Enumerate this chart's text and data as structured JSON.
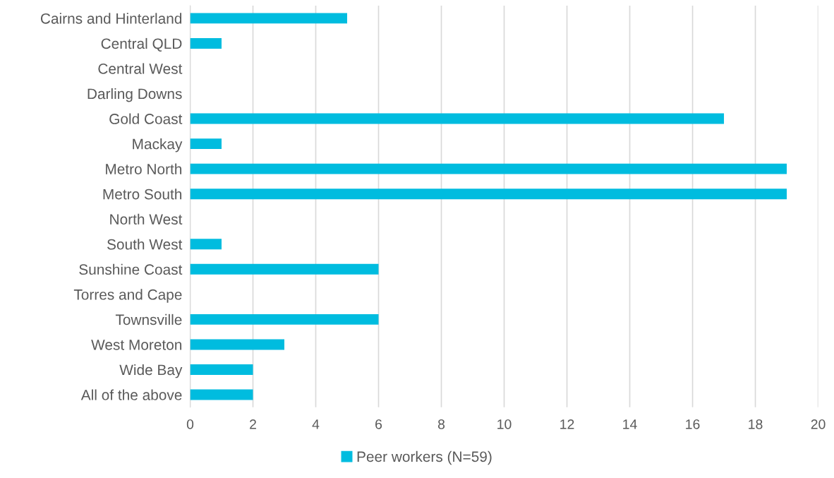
{
  "chart_data": {
    "type": "bar",
    "orientation": "horizontal",
    "categories": [
      "Cairns and Hinterland",
      "Central QLD",
      "Central West",
      "Darling Downs",
      "Gold Coast",
      "Mackay",
      "Metro North",
      "Metro South",
      "North West",
      "South West",
      "Sunshine Coast",
      "Torres and Cape",
      "Townsville",
      "West Moreton",
      "Wide Bay",
      "All of the above"
    ],
    "series": [
      {
        "name": "Peer workers (N=59)",
        "color": "#00bcdf",
        "values": [
          5,
          1,
          0,
          0,
          17,
          1,
          19,
          19,
          0,
          1,
          6,
          0,
          6,
          3,
          2,
          2
        ]
      }
    ],
    "xlim": [
      0,
      20
    ],
    "xticks": [
      0,
      2,
      4,
      6,
      8,
      10,
      12,
      14,
      16,
      18,
      20
    ],
    "grid": "x",
    "legend": "bottom"
  }
}
